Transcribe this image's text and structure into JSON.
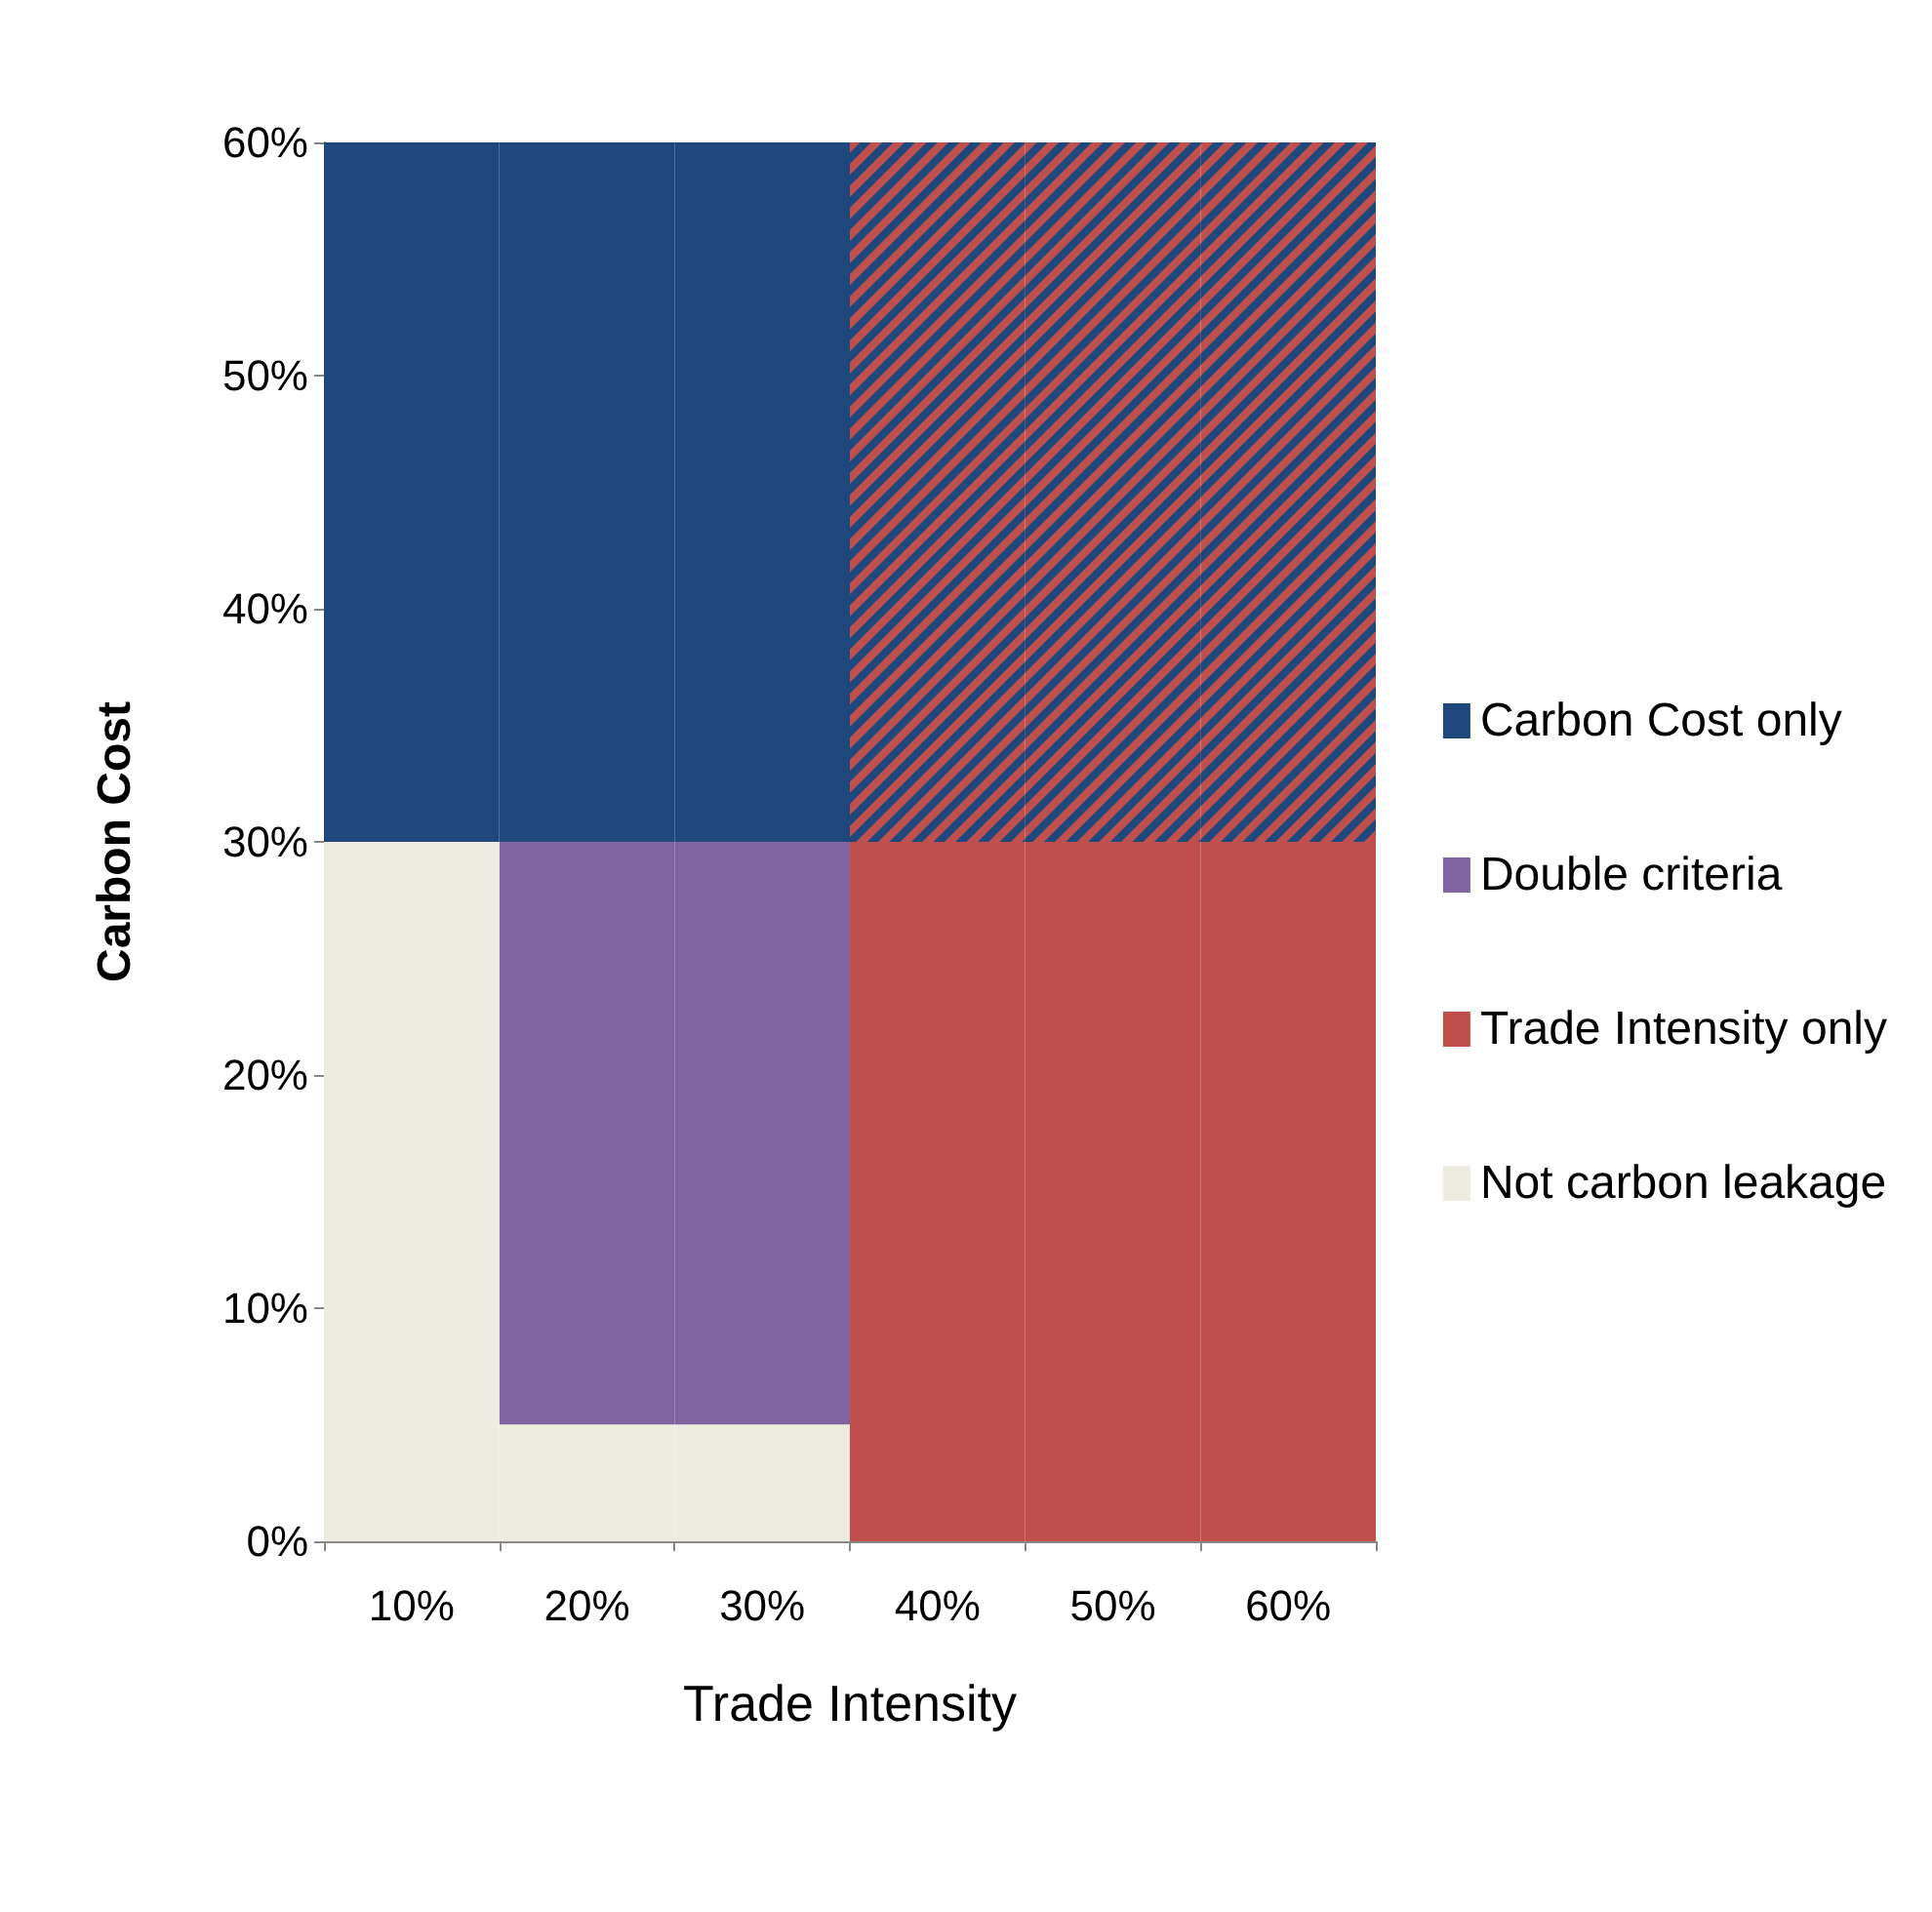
{
  "chart_data": {
    "type": "bar",
    "xlabel": "Trade Intensity",
    "ylabel": "Carbon Cost",
    "categories": [
      "10%",
      "20%",
      "30%",
      "40%",
      "50%",
      "60%"
    ],
    "series": [
      {
        "name": "Carbon Cost only",
        "color": "#1f497d",
        "values": [
          30,
          30,
          30,
          null,
          null,
          null
        ],
        "base": [
          30,
          30,
          30,
          null,
          null,
          null
        ]
      },
      {
        "name": "Double criteria",
        "color": "#8064a2",
        "values": [
          null,
          25,
          25,
          null,
          null,
          null
        ],
        "base": [
          null,
          5,
          5,
          null,
          null,
          null
        ]
      },
      {
        "name": "Trade Intensity only",
        "color": "#c0504d",
        "values": [
          null,
          null,
          null,
          30,
          30,
          30
        ],
        "base": [
          null,
          null,
          null,
          0,
          0,
          0
        ]
      },
      {
        "name": "Not carbon leakage",
        "color": "#eeece1",
        "values": [
          30,
          5,
          5,
          null,
          null,
          null
        ],
        "base": [
          0,
          0,
          0,
          null,
          null,
          null
        ]
      },
      {
        "color": "#c0504d",
        "values": [
          null,
          null,
          null,
          30,
          30,
          30
        ],
        "base": [
          null,
          null,
          null,
          30,
          30,
          30
        ]
      }
    ],
    "ylim": [
      0,
      60
    ],
    "yticks": [
      {
        "value": 0,
        "label": "0%"
      },
      {
        "value": 10,
        "label": "10%"
      },
      {
        "value": 20,
        "label": "20%"
      },
      {
        "value": 30,
        "label": "30%"
      },
      {
        "value": 40,
        "label": "40%"
      },
      {
        "value": 50,
        "label": "50%"
      },
      {
        "value": 60,
        "label": "60%"
      }
    ],
    "grid": false,
    "legend": "right"
  }
}
